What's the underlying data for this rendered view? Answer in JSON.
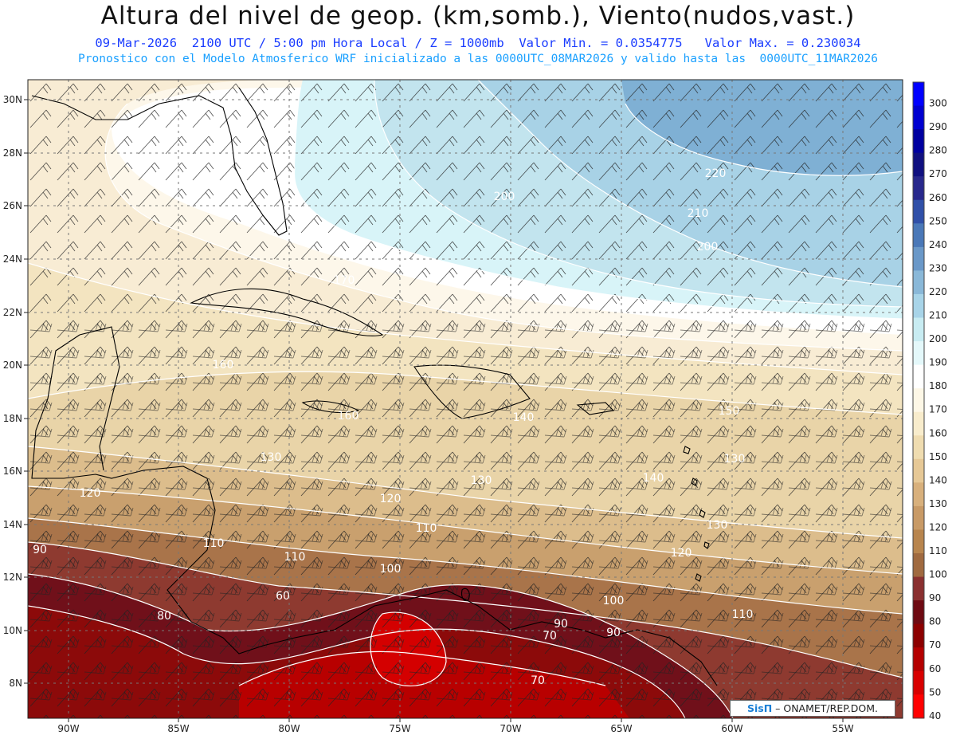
{
  "header": {
    "title": "Altura del nivel de geop. (km,somb.), Viento(nudos,vast.)",
    "subtitle_1": "09-Mar-2026  2100 UTC / 5:00 pm Hora Local / Z = 1000mb  Valor Min. = 0.0354775   Valor Max. = 0.230034",
    "subtitle_2": "Pronostico con el Modelo Atmosferico WRF inicializado a las 0000UTC_08MAR2026 y valido hasta las  0000UTC_11MAR2026"
  },
  "axes": {
    "lat_labels": [
      "30N",
      "28N",
      "26N",
      "24N",
      "22N",
      "20N",
      "18N",
      "16N",
      "14N",
      "12N",
      "10N",
      "8N"
    ],
    "lon_labels": [
      "90W",
      "85W",
      "80W",
      "75W",
      "70W",
      "65W",
      "60W",
      "55W"
    ]
  },
  "colorbar": {
    "levels": [
      "300",
      "290",
      "280",
      "270",
      "260",
      "250",
      "240",
      "230",
      "220",
      "210",
      "200",
      "190",
      "180",
      "170",
      "160",
      "150",
      "140",
      "130",
      "120",
      "110",
      "100",
      "90",
      "80",
      "70",
      "60",
      "50",
      "40"
    ],
    "colors": [
      "#0000ff",
      "#0000d0",
      "#0000a0",
      "#101080",
      "#28288c",
      "#3050a8",
      "#4a78b8",
      "#6a98c8",
      "#8ab8d8",
      "#a8d4e8",
      "#c8ecf2",
      "#e4f8fa",
      "#ffffff",
      "#fdf7e6",
      "#f8eccc",
      "#efdcb0",
      "#e6c896",
      "#d8b07c",
      "#c89a66",
      "#b8854e",
      "#a06a40",
      "#8a3030",
      "#6e0a12",
      "#8c0000",
      "#b40000",
      "#d80000",
      "#ff0000"
    ]
  },
  "contour_labels": [
    "220",
    "210",
    "200",
    "200",
    "170",
    "160",
    "160",
    "150",
    "140",
    "130",
    "130",
    "130",
    "130",
    "140",
    "120",
    "120",
    "120",
    "110",
    "110",
    "110",
    "110",
    "100",
    "100",
    "90",
    "90",
    "90",
    "80",
    "70",
    "70",
    "60"
  ],
  "credit": {
    "brand": "SisΠ",
    "text": " – ONAMET/REP.DOM."
  }
}
